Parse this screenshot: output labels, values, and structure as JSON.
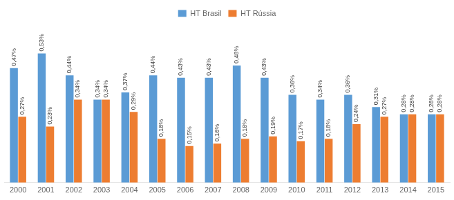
{
  "chart_data": {
    "type": "bar",
    "categories": [
      "2000",
      "2001",
      "2002",
      "2003",
      "2004",
      "2005",
      "2006",
      "2007",
      "2008",
      "2009",
      "2010",
      "2011",
      "2012",
      "2013",
      "2014",
      "2015"
    ],
    "series": [
      {
        "name": "HT Brasil",
        "color": "#5B9BD5",
        "values": [
          0.47,
          0.53,
          0.44,
          0.34,
          0.37,
          0.44,
          0.43,
          0.43,
          0.48,
          0.43,
          0.36,
          0.34,
          0.36,
          0.31,
          0.28,
          0.28
        ],
        "value_labels": [
          "0,47%",
          "0,53%",
          "0,44%",
          "0,34%",
          "0,37%",
          "0,44%",
          "0,43%",
          "0,43%",
          "0,48%",
          "0,43%",
          "0,36%",
          "0,34%",
          "0,36%",
          "0,31%",
          "0,28%",
          "0,28%"
        ]
      },
      {
        "name": "HT Rússia",
        "color": "#ED7D31",
        "values": [
          0.27,
          0.23,
          0.34,
          0.34,
          0.29,
          0.18,
          0.15,
          0.16,
          0.18,
          0.19,
          0.17,
          0.18,
          0.24,
          0.27,
          0.28,
          0.28
        ],
        "value_labels": [
          "0,27%",
          "0,23%",
          "0,34%",
          "0,34%",
          "0,29%",
          "0,18%",
          "0,15%",
          "0,16%",
          "0,18%",
          "0,19%",
          "0,17%",
          "0,18%",
          "0,24%",
          "0,27%",
          "0,28%",
          "0,28%"
        ]
      }
    ],
    "ylim": [
      0,
      0.65
    ],
    "grid": false,
    "legend": "top",
    "data_labels": true,
    "tick_labels": "x"
  }
}
